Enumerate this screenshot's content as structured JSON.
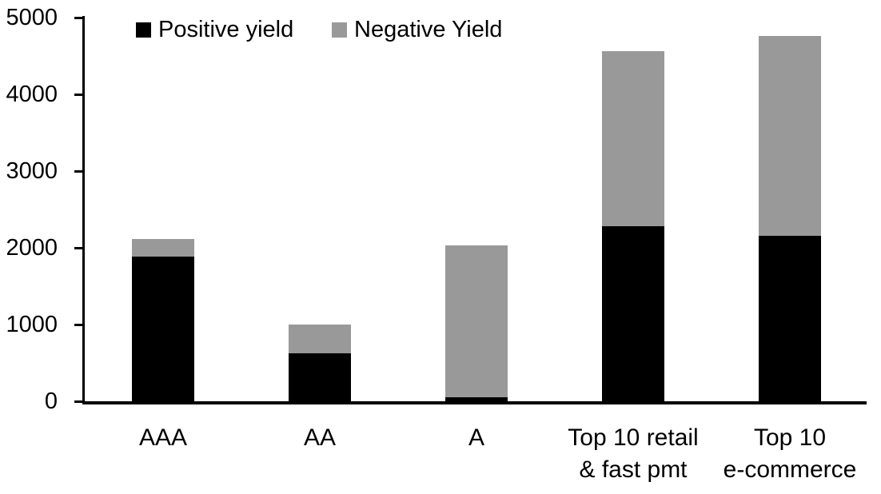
{
  "chart_data": {
    "type": "bar",
    "stacked": true,
    "title": "",
    "xlabel": "",
    "ylabel": "",
    "categories": [
      "AAA",
      "AA",
      "A",
      "Top 10 retail\n& fast pmt",
      "Top 10\ne-commerce"
    ],
    "series": [
      {
        "name": "Positive yield",
        "color": "#000000",
        "values": [
          1890,
          620,
          50,
          2280,
          2155
        ]
      },
      {
        "name": "Negative Yield",
        "color": "#999999",
        "values": [
          225,
          380,
          1980,
          2280,
          2605
        ]
      }
    ],
    "stack_totals": [
      2115,
      1000,
      2030,
      4560,
      4760
    ],
    "ylim": [
      0,
      5000
    ],
    "ytick_step": 1000,
    "ytick_labels": [
      "0",
      "1000",
      "2000",
      "3000",
      "4000",
      "5000"
    ],
    "grid": false,
    "legend_position": "top",
    "axis_color": "#000000",
    "background_color": "#ffffff"
  }
}
